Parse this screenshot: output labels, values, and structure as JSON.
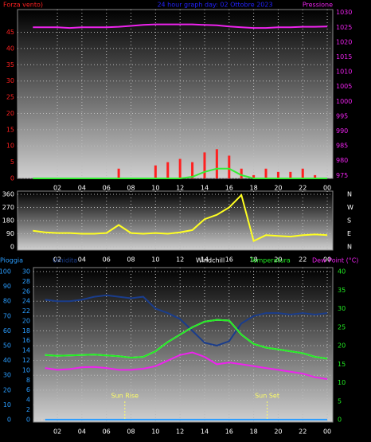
{
  "chart_data": [
    {
      "type": "bar",
      "title": "24 hour graph day: 02 Ottobre 2023",
      "ylabel": "Forza vento)",
      "y2label": "Pressione",
      "x": [
        0,
        1,
        2,
        3,
        4,
        5,
        6,
        7,
        8,
        9,
        10,
        11,
        12,
        13,
        14,
        15,
        16,
        17,
        18,
        19,
        20,
        21,
        22,
        23,
        24
      ],
      "xlim": [
        -1.25,
        24.45
      ],
      "xticks": [
        {
          "value": 2,
          "label": "02"
        },
        {
          "value": 4,
          "label": "04"
        },
        {
          "value": 6,
          "label": "06"
        },
        {
          "value": 8,
          "label": "08"
        },
        10,
        12,
        14,
        16,
        18,
        20,
        22,
        {
          "value": 24,
          "label": "00"
        }
      ],
      "ylim": [
        0,
        52
      ],
      "yticks": [
        0,
        5,
        10,
        15,
        20,
        25,
        30,
        35,
        40,
        45
      ],
      "y2lim": [
        974,
        1031
      ],
      "y2ticks": [
        975,
        980,
        985,
        990,
        995,
        1000,
        1005,
        1010,
        1015,
        1020,
        1025,
        1030
      ],
      "grid": true,
      "series": [
        {
          "name": "Forza vento",
          "type": "bar",
          "color": "#ff2020",
          "values": [
            0,
            0,
            0,
            0,
            0,
            0,
            0,
            3,
            0,
            0,
            4,
            5,
            6,
            5,
            8,
            9,
            7,
            3,
            1,
            3,
            2,
            2,
            3,
            1,
            0
          ]
        },
        {
          "name": "Vento medio",
          "type": "line",
          "color": "#33ee33",
          "values": [
            0,
            0,
            0,
            0,
            0,
            0,
            0,
            0,
            0,
            0,
            0,
            0,
            0,
            0.5,
            2,
            3,
            3,
            1,
            0,
            0,
            0,
            0,
            0,
            0,
            0
          ]
        },
        {
          "name": "Pressione",
          "type": "line",
          "axis": "y2",
          "color": "#ee22ee",
          "values": [
            1025,
            1025,
            1025,
            1024.8,
            1025,
            1025,
            1025,
            1025.2,
            1025.5,
            1025.8,
            1026,
            1026,
            1026,
            1026,
            1025.8,
            1025.7,
            1025.3,
            1025,
            1024.8,
            1024.8,
            1025,
            1025,
            1025.2,
            1025.2,
            1025.3
          ]
        }
      ]
    },
    {
      "type": "line",
      "x": [
        0,
        1,
        2,
        3,
        4,
        5,
        6,
        7,
        8,
        9,
        10,
        11,
        12,
        13,
        14,
        15,
        16,
        17,
        18,
        19,
        20,
        21,
        22,
        23,
        24
      ],
      "xlim": [
        -1.25,
        24.45
      ],
      "xticks": [
        {
          "value": 2,
          "label": "02"
        },
        {
          "value": 4,
          "label": "04"
        },
        {
          "value": 6,
          "label": "06"
        },
        {
          "value": 8,
          "label": "08"
        },
        10,
        12,
        14,
        16,
        18,
        20,
        22,
        {
          "value": 24,
          "label": "00"
        }
      ],
      "ylim": [
        -22,
        382
      ],
      "yticks": [
        0,
        90,
        180,
        270,
        360
      ],
      "y2lim": [
        -22,
        382
      ],
      "y2ticks": [
        {
          "value": 360,
          "label": "N"
        },
        {
          "value": 270,
          "label": "W"
        },
        {
          "value": 180,
          "label": "S"
        },
        {
          "value": 90,
          "label": "E"
        },
        {
          "value": 0,
          "label": "N"
        }
      ],
      "grid": true,
      "series": [
        {
          "name": "Direzione",
          "color": "#ffff22",
          "values": [
            110,
            100,
            95,
            95,
            90,
            90,
            95,
            150,
            95,
            90,
            95,
            90,
            100,
            115,
            190,
            220,
            270,
            355,
            40,
            80,
            75,
            70,
            80,
            85,
            80
          ]
        }
      ]
    },
    {
      "type": "line",
      "x": [
        1,
        2,
        3,
        4,
        5,
        6,
        7,
        8,
        9,
        10,
        11,
        12,
        13,
        14,
        15,
        16,
        17,
        18,
        19,
        20,
        21,
        22,
        23,
        24
      ],
      "xlim": [
        0.05,
        24.45
      ],
      "xticks": [
        {
          "value": 2,
          "label": "02"
        },
        {
          "value": 4,
          "label": "04"
        },
        {
          "value": 6,
          "label": "06"
        },
        {
          "value": 8,
          "label": "08"
        },
        10,
        12,
        14,
        16,
        18,
        20,
        22,
        {
          "value": 24,
          "label": "00"
        }
      ],
      "ylim": [
        -1.6,
        102.7
      ],
      "yticks": [
        0,
        10,
        20,
        30,
        40,
        50,
        60,
        70,
        80,
        90,
        100
      ],
      "y3lim": [
        -0.5,
        30.8
      ],
      "y3ticks": [
        0,
        2,
        4,
        6,
        8,
        10,
        12,
        14,
        16,
        18,
        20,
        22,
        24,
        26,
        28,
        30
      ],
      "y2lim": [
        -0.6,
        41.1
      ],
      "y2ticks": [
        0,
        5,
        10,
        15,
        20,
        25,
        30,
        35,
        40
      ],
      "grid": true,
      "series": [
        {
          "name": "Pioggia",
          "axis": "y3",
          "color": "#2a9dff",
          "values": [
            0,
            0,
            0,
            0,
            0,
            0,
            0,
            0,
            0,
            0,
            0,
            0,
            0,
            0,
            0,
            0,
            0,
            0,
            0,
            0,
            0,
            0,
            0,
            0
          ]
        },
        {
          "name": "Umidita",
          "color": "#1a3d8c",
          "values": [
            81,
            80,
            80,
            81,
            83,
            84,
            83,
            82,
            83,
            75,
            72,
            68,
            60,
            52,
            50,
            53,
            65,
            70,
            72,
            72,
            71,
            72,
            71,
            72
          ]
        },
        {
          "name": "Windchill",
          "axis": "y2",
          "color": "#ffffff",
          "values": [
            17.5,
            17.3,
            17.4,
            17.5,
            17.6,
            17.4,
            17.2,
            16.8,
            17,
            18.5,
            21,
            23,
            25,
            26.5,
            27,
            26.8,
            23,
            20.5,
            19.5,
            19,
            18.5,
            18,
            17,
            16.5
          ]
        },
        {
          "name": "Temperatura",
          "axis": "y2",
          "color": "#22ee22",
          "values": [
            17.5,
            17.3,
            17.4,
            17.5,
            17.6,
            17.4,
            17.2,
            16.8,
            17,
            18.5,
            21,
            23,
            25,
            26.5,
            27,
            26.8,
            23,
            20.5,
            19.5,
            19,
            18.5,
            18,
            17,
            16.5
          ]
        },
        {
          "name": "Dew Point (°C)",
          "axis": "y2",
          "color": "#ee22ee",
          "values": [
            14,
            13.5,
            13.7,
            14.2,
            14.3,
            14,
            13.5,
            13.5,
            13.8,
            14.5,
            16,
            17.5,
            18.2,
            17,
            15,
            15.5,
            15,
            14.5,
            14,
            13.5,
            13,
            12.5,
            11.5,
            11
          ]
        }
      ],
      "annotations": [
        {
          "text": "Sun Rise",
          "x": 7.5
        },
        {
          "text": "Sun Set",
          "x": 19.1
        }
      ]
    }
  ]
}
